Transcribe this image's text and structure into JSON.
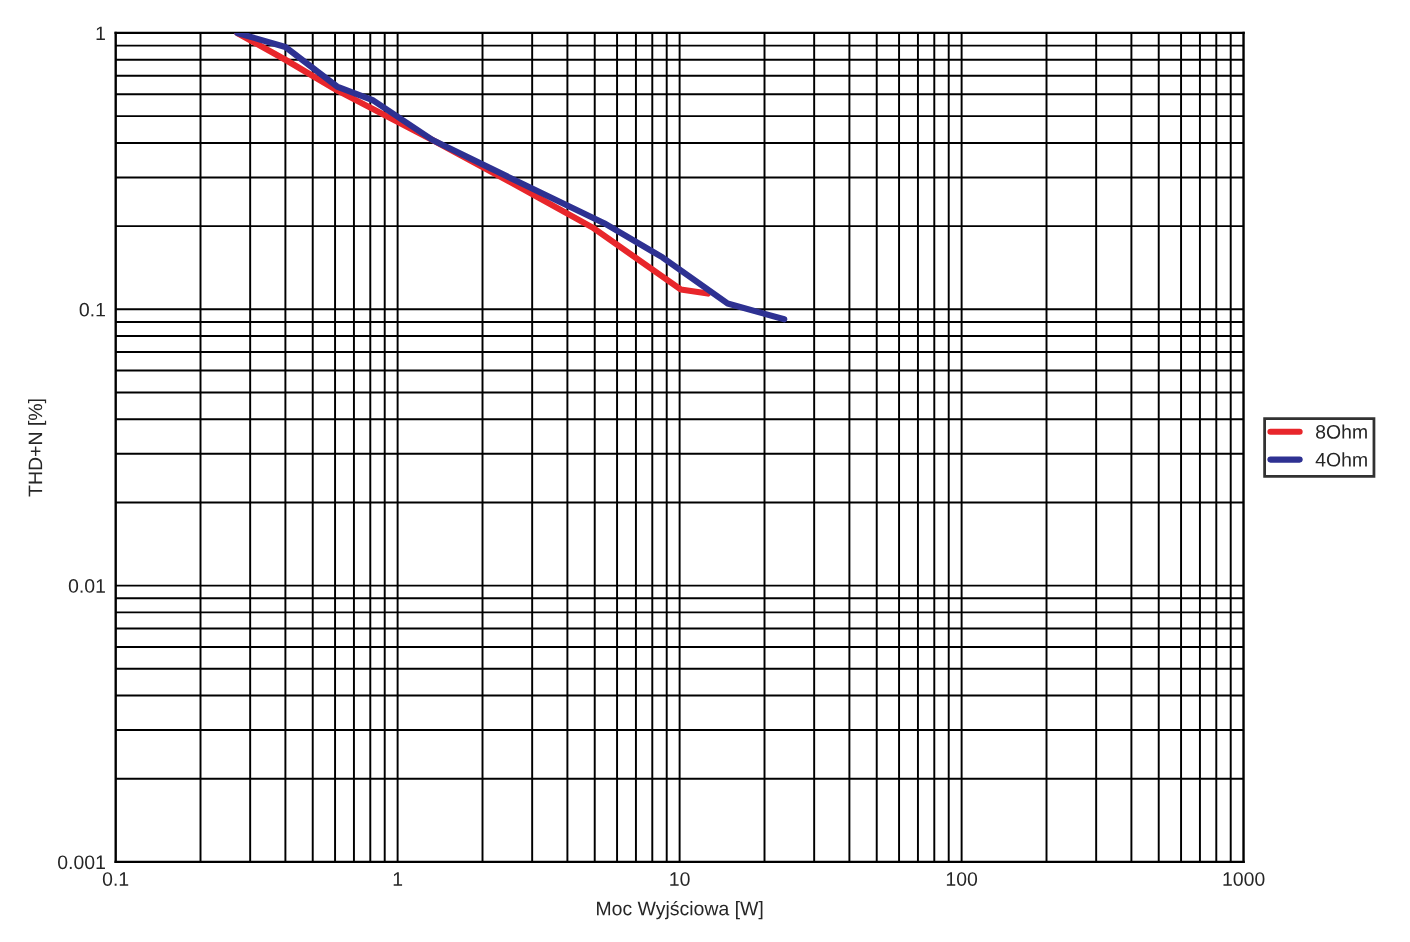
{
  "chart_data": {
    "type": "line",
    "xlabel": "Moc Wyjściowa [W]",
    "ylabel": "THD+N [%]",
    "log": "xy",
    "xlim": [
      0.1,
      1000
    ],
    "xticks": [
      {
        "value": 0.1,
        "label": "0.1"
      },
      {
        "value": 1,
        "label": "1"
      },
      {
        "value": 10,
        "label": "10"
      },
      {
        "value": 100,
        "label": "100"
      },
      {
        "value": 1000,
        "label": "1000"
      }
    ],
    "ylim": [
      0.001,
      1
    ],
    "yticks": [
      {
        "value": 0.001,
        "label": "0.001"
      },
      {
        "value": 0.01,
        "label": "0.01"
      },
      {
        "value": 0.1,
        "label": "0.1"
      },
      {
        "value": 1,
        "label": "1"
      }
    ],
    "grid": true,
    "legend": "right",
    "line_style": "solid",
    "marker": "none",
    "series": [
      {
        "name": "8Ohm",
        "color": "#e8262b",
        "x": [
          0.27,
          0.4,
          0.61,
          1.33,
          2.49,
          4.9,
          10.1,
          12.6
        ],
        "values": [
          1.0,
          0.8,
          0.62,
          0.41,
          0.29,
          0.198,
          0.118,
          0.114
        ]
      },
      {
        "name": "4Ohm",
        "color": "#2e3192",
        "x": [
          0.27,
          0.4,
          0.61,
          0.82,
          1.33,
          2.49,
          5.4,
          8.7,
          14.8,
          23.5
        ],
        "values": [
          1.0,
          0.89,
          0.64,
          0.57,
          0.41,
          0.3,
          0.205,
          0.154,
          0.105,
          0.092
        ]
      }
    ]
  }
}
